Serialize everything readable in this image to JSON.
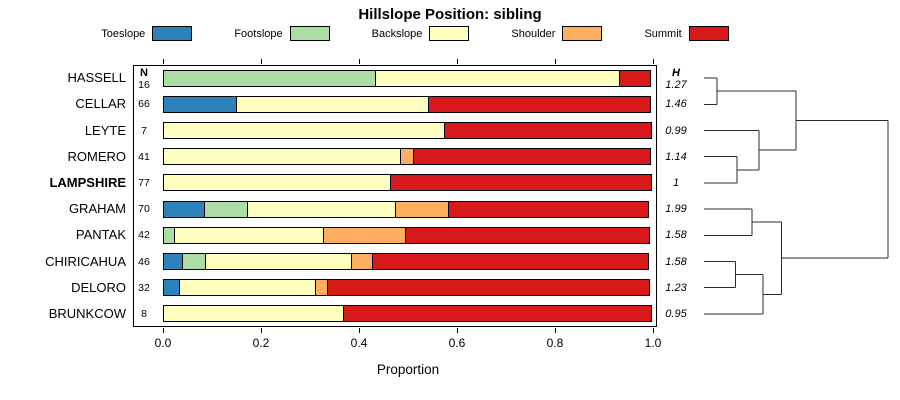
{
  "title": "Hillslope Position: sibling",
  "xlabel": "Proportion",
  "col_headers": {
    "n": "N",
    "h": "H"
  },
  "axis": {
    "min": 0,
    "max": 1,
    "ticks": [
      0.0,
      0.2,
      0.4,
      0.6,
      0.8,
      1.0
    ],
    "tick_labels": [
      "0.0",
      "0.2",
      "0.4",
      "0.6",
      "0.8",
      "1.0"
    ]
  },
  "chart_data": {
    "type": "bar",
    "orientation": "horizontal-stacked",
    "title": "Hillslope Position: sibling",
    "xlabel": "Proportion",
    "xlim": [
      0,
      1
    ],
    "grid": false,
    "legend_position": "top",
    "series": [
      {
        "name": "Toeslope",
        "color": "#2B83BA"
      },
      {
        "name": "Footslope",
        "color": "#ABDDA4"
      },
      {
        "name": "Backslope",
        "color": "#FFFFBF"
      },
      {
        "name": "Shoulder",
        "color": "#FDAE61"
      },
      {
        "name": "Summit",
        "color": "#D7191C"
      }
    ],
    "rows": [
      {
        "name": "HASSELL",
        "n": "16",
        "h": "1.27",
        "bold": false,
        "segments": [
          [
            "Footslope",
            0.435
          ],
          [
            "Backslope",
            0.5
          ],
          [
            "Summit",
            0.065
          ]
        ]
      },
      {
        "name": "CELLAR",
        "n": "66",
        "h": "1.46",
        "bold": false,
        "segments": [
          [
            "Toeslope",
            0.15
          ],
          [
            "Backslope",
            0.395
          ],
          [
            "Summit",
            0.455
          ]
        ]
      },
      {
        "name": "LEYTE",
        "n": "7",
        "h": "0.99",
        "bold": false,
        "segments": [
          [
            "Backslope",
            0.575
          ],
          [
            "Summit",
            0.425
          ]
        ]
      },
      {
        "name": "ROMERO",
        "n": "41",
        "h": "1.14",
        "bold": false,
        "segments": [
          [
            "Backslope",
            0.485
          ],
          [
            "Shoulder",
            0.03
          ],
          [
            "Summit",
            0.485
          ]
        ]
      },
      {
        "name": "LAMPSHIRE",
        "n": "77",
        "h": "1",
        "bold": true,
        "segments": [
          [
            "Backslope",
            0.465
          ],
          [
            "Summit",
            0.535
          ]
        ]
      },
      {
        "name": "GRAHAM",
        "n": "70",
        "h": "1.99",
        "bold": false,
        "segments": [
          [
            "Toeslope",
            0.085
          ],
          [
            "Footslope",
            0.09
          ],
          [
            "Backslope",
            0.305
          ],
          [
            "Shoulder",
            0.11
          ],
          [
            "Summit",
            0.41
          ]
        ]
      },
      {
        "name": "PANTAK",
        "n": "42",
        "h": "1.58",
        "bold": false,
        "segments": [
          [
            "Footslope",
            0.025
          ],
          [
            "Backslope",
            0.305
          ],
          [
            "Shoulder",
            0.17
          ],
          [
            "Summit",
            0.5
          ]
        ]
      },
      {
        "name": "CHIRICAHUA",
        "n": "46",
        "h": "1.58",
        "bold": false,
        "segments": [
          [
            "Toeslope",
            0.04
          ],
          [
            "Footslope",
            0.05
          ],
          [
            "Backslope",
            0.3
          ],
          [
            "Shoulder",
            0.045
          ],
          [
            "Summit",
            0.565
          ]
        ]
      },
      {
        "name": "DELORO",
        "n": "32",
        "h": "1.23",
        "bold": false,
        "segments": [
          [
            "Toeslope",
            0.035
          ],
          [
            "Backslope",
            0.28
          ],
          [
            "Shoulder",
            0.025
          ],
          [
            "Summit",
            0.66
          ]
        ]
      },
      {
        "name": "BRUNKCOW",
        "n": "8",
        "h": "0.95",
        "bold": false,
        "segments": [
          [
            "Backslope",
            0.37
          ],
          [
            "Summit",
            0.63
          ]
        ]
      }
    ]
  },
  "dendrogram": {
    "leaves": [
      "HASSELL",
      "CELLAR",
      "LEYTE",
      "ROMERO",
      "LAMPSHIRE",
      "GRAHAM",
      "PANTAK",
      "CHIRICAHUA",
      "DELORO",
      "BRUNKCOW"
    ],
    "merges": [
      {
        "id": "m1",
        "a": "L0",
        "b": "L1",
        "h": 0.07
      },
      {
        "id": "m2",
        "a": "L3",
        "b": "L4",
        "h": 0.18
      },
      {
        "id": "m3",
        "a": "L2",
        "b": "m2",
        "h": 0.3
      },
      {
        "id": "m4",
        "a": "m1",
        "b": "m3",
        "h": 0.5
      },
      {
        "id": "m5",
        "a": "L5",
        "b": "L6",
        "h": 0.26
      },
      {
        "id": "m6",
        "a": "L7",
        "b": "L8",
        "h": 0.17
      },
      {
        "id": "m7",
        "a": "m6",
        "b": "L9",
        "h": 0.32
      },
      {
        "id": "m8",
        "a": "m5",
        "b": "m7",
        "h": 0.42
      },
      {
        "id": "m9",
        "a": "m4",
        "b": "m8",
        "h": 1.0
      }
    ]
  }
}
